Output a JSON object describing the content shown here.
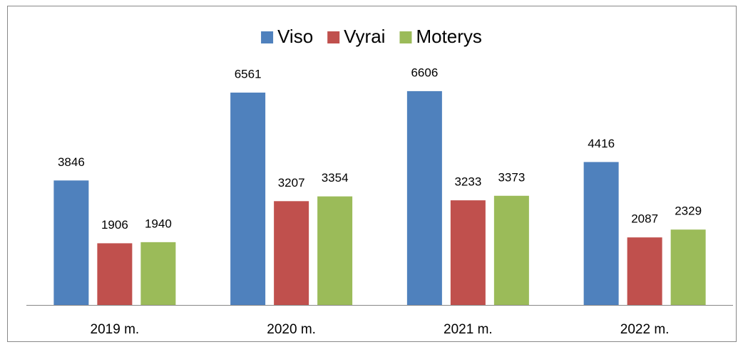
{
  "chart_data": {
    "type": "bar",
    "categories": [
      "2019 m.",
      "2020 m.",
      "2021 m.",
      "2022 m."
    ],
    "series": [
      {
        "name": "Viso",
        "color": "#4f81bd",
        "values": [
          3846,
          6561,
          6606,
          4416
        ]
      },
      {
        "name": "Vyrai",
        "color": "#c0504d",
        "values": [
          1906,
          3207,
          3233,
          2087
        ]
      },
      {
        "name": "Moterys",
        "color": "#9bbb59",
        "values": [
          1940,
          3354,
          3373,
          2329
        ]
      }
    ],
    "ylim": [
      0,
      7000
    ],
    "legend": "top"
  }
}
